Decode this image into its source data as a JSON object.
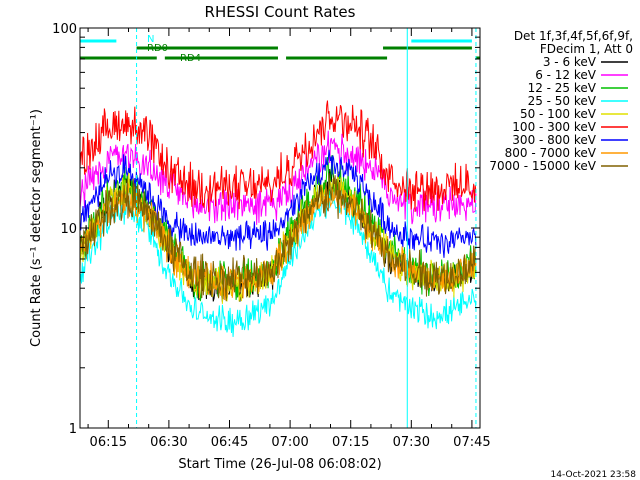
{
  "chart_data": {
    "type": "line",
    "title": "RHESSI Count Rates",
    "xlabel": "Start Time (26-Jul-08 06:08:02)",
    "ylabel": "Count Rate (s⁻¹ detector segment⁻¹)",
    "y_scale": "log",
    "ylim": [
      1,
      100
    ],
    "y_ticks": [
      {
        "value": 1,
        "label": "1"
      },
      {
        "value": 10,
        "label": "10"
      },
      {
        "value": 100,
        "label": "100"
      }
    ],
    "x_range": [
      "06:08",
      "07:47"
    ],
    "x_ticks": [
      "06:15",
      "06:30",
      "06:45",
      "07:00",
      "07:15",
      "07:30",
      "07:45"
    ],
    "grid": false,
    "legend_position": "right",
    "legend_title": [
      "Det 1f,3f,4f,5f,6f,9f,",
      "FDecim 1, Att 0"
    ],
    "timestamp": "14-Oct-2021 23:58",
    "series": [
      {
        "name": "3 - 6 keV",
        "color": "#000000",
        "x": [
          "06:08",
          "06:15",
          "06:20",
          "06:25",
          "06:30",
          "06:36",
          "06:45",
          "06:52",
          "06:56",
          "07:00",
          "07:05",
          "07:10",
          "07:15",
          "07:20",
          "07:25",
          "07:30",
          "07:35",
          "07:40",
          "07:45"
        ],
        "values": [
          7.5,
          14,
          16,
          12,
          8,
          5.3,
          5.0,
          5.3,
          6,
          9,
          13,
          17,
          14,
          10,
          7,
          6,
          5.5,
          5.5,
          6.5
        ]
      },
      {
        "name": "6 - 12 keV",
        "color": "#ff00ff",
        "x": [
          "06:08",
          "06:15",
          "06:20",
          "06:25",
          "06:30",
          "06:36",
          "06:45",
          "06:52",
          "06:56",
          "07:00",
          "07:05",
          "07:10",
          "07:15",
          "07:20",
          "07:25",
          "07:30",
          "07:35",
          "07:40",
          "07:45"
        ],
        "values": [
          15,
          22,
          24,
          20,
          16,
          13,
          13,
          13,
          13,
          15,
          20,
          25,
          24,
          20,
          15,
          13,
          13,
          13,
          13
        ]
      },
      {
        "name": "12 - 25 keV",
        "color": "#00c000",
        "x": [
          "06:08",
          "06:15",
          "06:20",
          "06:25",
          "06:30",
          "06:36",
          "06:45",
          "06:52",
          "06:56",
          "07:00",
          "07:05",
          "07:10",
          "07:15",
          "07:20",
          "07:25",
          "07:30",
          "07:35",
          "07:40",
          "07:45"
        ],
        "values": [
          7.5,
          15,
          17,
          13,
          8.5,
          5.6,
          5.3,
          5.6,
          6.5,
          9.5,
          14,
          18,
          15,
          11,
          7.5,
          6.3,
          5.8,
          5.8,
          6.8
        ]
      },
      {
        "name": "25 - 50 keV",
        "color": "#00ffff",
        "x": [
          "06:08",
          "06:15",
          "06:20",
          "06:25",
          "06:30",
          "06:36",
          "06:45",
          "06:52",
          "06:56",
          "07:00",
          "07:05",
          "07:10",
          "07:15",
          "07:20",
          "07:25",
          "07:30",
          "07:35",
          "07:40",
          "07:45"
        ],
        "values": [
          6,
          11,
          13,
          9.5,
          6,
          3.8,
          3.4,
          3.8,
          4.5,
          7,
          10.5,
          14,
          11.5,
          7.5,
          4.6,
          4.0,
          3.6,
          3.8,
          4.3
        ]
      },
      {
        "name": "50 - 100 keV",
        "color": "#e0e000",
        "x": [
          "06:08",
          "06:15",
          "06:20",
          "06:25",
          "06:30",
          "06:36",
          "06:45",
          "06:52",
          "06:56",
          "07:00",
          "07:05",
          "07:10",
          "07:15",
          "07:20",
          "07:25",
          "07:30",
          "07:35",
          "07:40",
          "07:45"
        ],
        "values": [
          7.3,
          14,
          15.5,
          12,
          8,
          5.4,
          5.1,
          5.4,
          6.2,
          9,
          13,
          16.5,
          14,
          10,
          7,
          6,
          5.5,
          5.5,
          6.5
        ]
      },
      {
        "name": "100 - 300 keV",
        "color": "#ff0000",
        "x": [
          "06:08",
          "06:15",
          "06:20",
          "06:25",
          "06:30",
          "06:36",
          "06:45",
          "06:52",
          "06:56",
          "07:00",
          "07:05",
          "07:10",
          "07:15",
          "07:20",
          "07:25",
          "07:30",
          "07:35",
          "07:40",
          "07:45"
        ],
        "values": [
          22,
          32,
          34,
          28,
          19,
          16,
          16,
          16,
          16.5,
          20,
          28,
          37,
          34,
          27,
          18,
          16,
          16,
          16,
          16
        ]
      },
      {
        "name": "300 - 800 keV",
        "color": "#0000ff",
        "x": [
          "06:08",
          "06:15",
          "06:20",
          "06:25",
          "06:30",
          "06:36",
          "06:45",
          "06:52",
          "06:56",
          "07:00",
          "07:05",
          "07:10",
          "07:15",
          "07:20",
          "07:25",
          "07:30",
          "07:35",
          "07:40",
          "07:45"
        ],
        "values": [
          11,
          18,
          20,
          15,
          10.5,
          9.0,
          9.0,
          9.0,
          9.5,
          12,
          17,
          21,
          19,
          14,
          10,
          9,
          8.5,
          8.5,
          9
        ]
      },
      {
        "name": "800 - 7000 keV",
        "color": "#ff9900",
        "x": [
          "06:08",
          "06:15",
          "06:20",
          "06:25",
          "06:30",
          "06:36",
          "06:45",
          "06:52",
          "06:56",
          "07:00",
          "07:05",
          "07:10",
          "07:15",
          "07:20",
          "07:25",
          "07:30",
          "07:35",
          "07:40",
          "07:45"
        ],
        "values": [
          7.8,
          12.5,
          14,
          11.5,
          8,
          5.6,
          5.4,
          5.6,
          6.3,
          8.5,
          12,
          15,
          13,
          9.5,
          7,
          6,
          5.6,
          5.6,
          6.5
        ]
      },
      {
        "name": "7000 - 15000 keV",
        "color": "#806000",
        "x": [
          "06:08",
          "06:15",
          "06:20",
          "06:25",
          "06:30",
          "06:36",
          "06:45",
          "06:52",
          "06:56",
          "07:00",
          "07:05",
          "07:10",
          "07:15",
          "07:20",
          "07:25",
          "07:30",
          "07:35",
          "07:40",
          "07:45"
        ],
        "values": [
          8,
          12.8,
          14.3,
          11.7,
          8.2,
          5.8,
          5.6,
          5.8,
          6.4,
          8.7,
          12.3,
          15.3,
          13.3,
          9.7,
          7.2,
          6.2,
          5.8,
          5.8,
          6.7
        ]
      }
    ],
    "annotations": [
      {
        "label": "N",
        "color": "#00ffff",
        "segments": [
          [
            "06:08",
            "06:17"
          ],
          [
            "07:30",
            "07:45"
          ]
        ]
      },
      {
        "label": "RD0",
        "color": "#008000",
        "segments": [
          [
            "06:22",
            "06:57"
          ],
          [
            "07:23",
            "07:45"
          ]
        ]
      },
      {
        "label": "RD4",
        "color": "#008000",
        "segments": [
          [
            "06:08",
            "06:27"
          ],
          [
            "06:29",
            "06:57"
          ],
          [
            "06:59",
            "07:24"
          ],
          [
            "07:46",
            "07:47"
          ]
        ]
      }
    ],
    "vertical_lines": [
      {
        "x": "06:08",
        "color": "#00ffff",
        "style": "solid"
      },
      {
        "x": "06:22",
        "color": "#00ffff",
        "style": "dashed"
      },
      {
        "x": "07:29",
        "color": "#00ffff",
        "style": "solid"
      },
      {
        "x": "07:46",
        "color": "#00ffff",
        "style": "dashed"
      }
    ]
  }
}
